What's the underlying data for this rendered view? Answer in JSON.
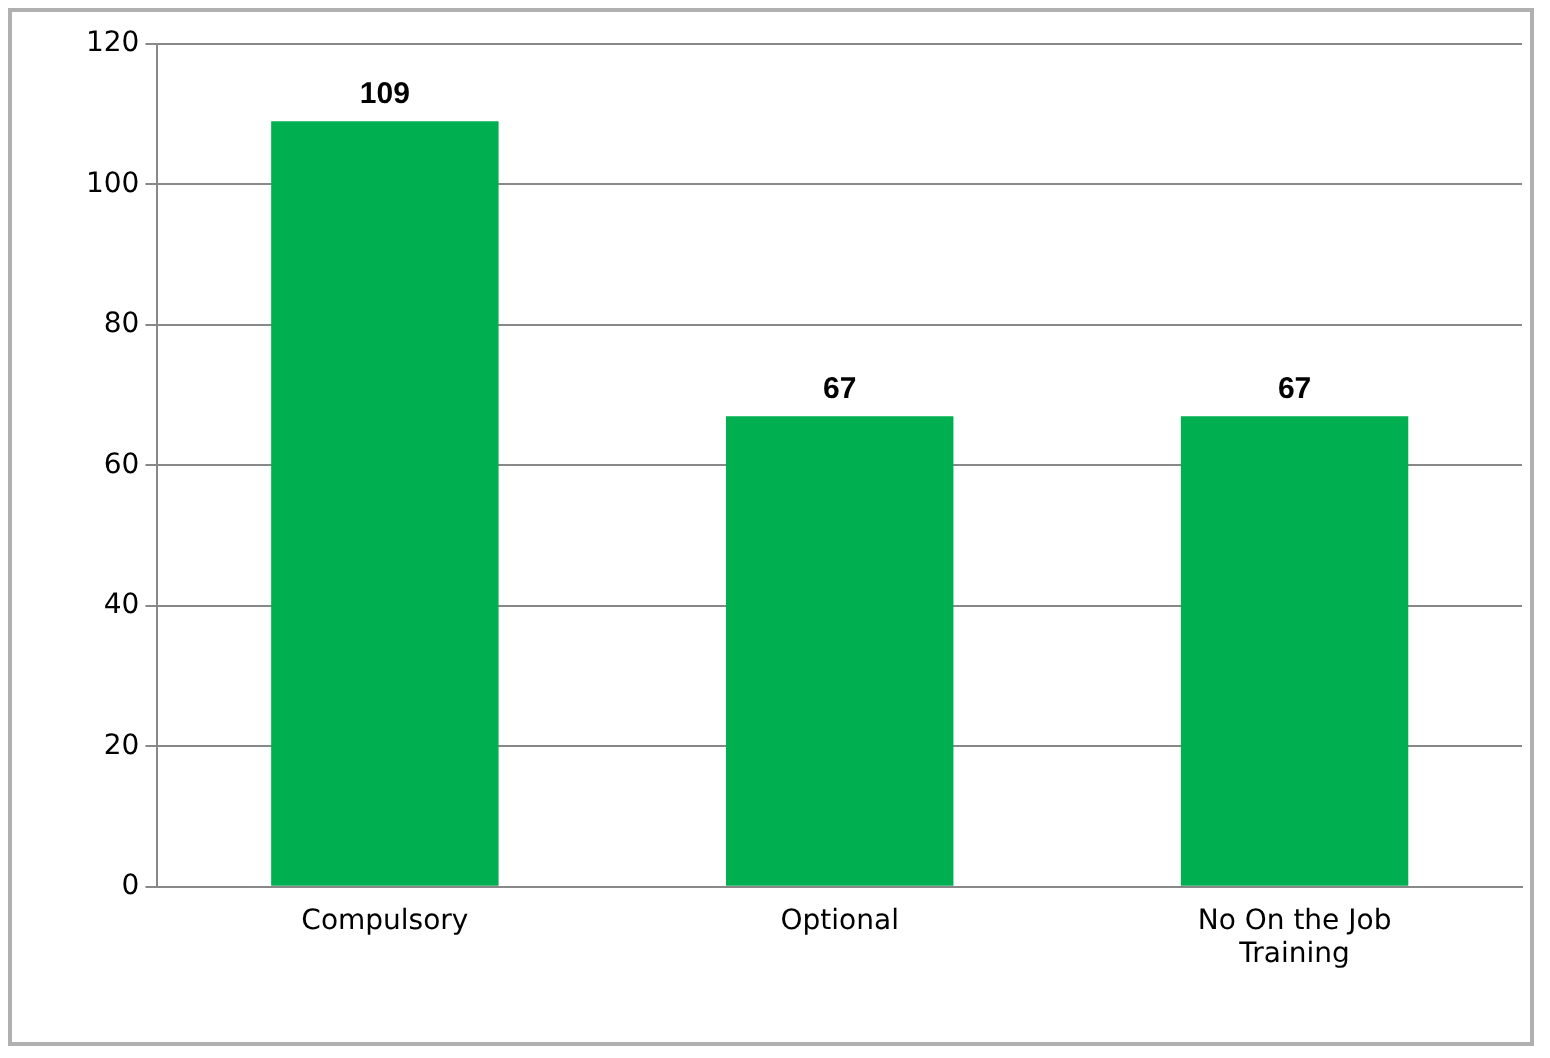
{
  "chart_data": {
    "type": "bar",
    "categories": [
      "Compulsory",
      "Optional",
      "No On the Job Training"
    ],
    "values": [
      109,
      67,
      67
    ],
    "color": "#00b050",
    "ylim": [
      0,
      120
    ],
    "yticks": [
      0,
      20,
      40,
      60,
      80,
      100,
      120
    ],
    "grid": "y",
    "data_labels": true,
    "legend": false
  }
}
